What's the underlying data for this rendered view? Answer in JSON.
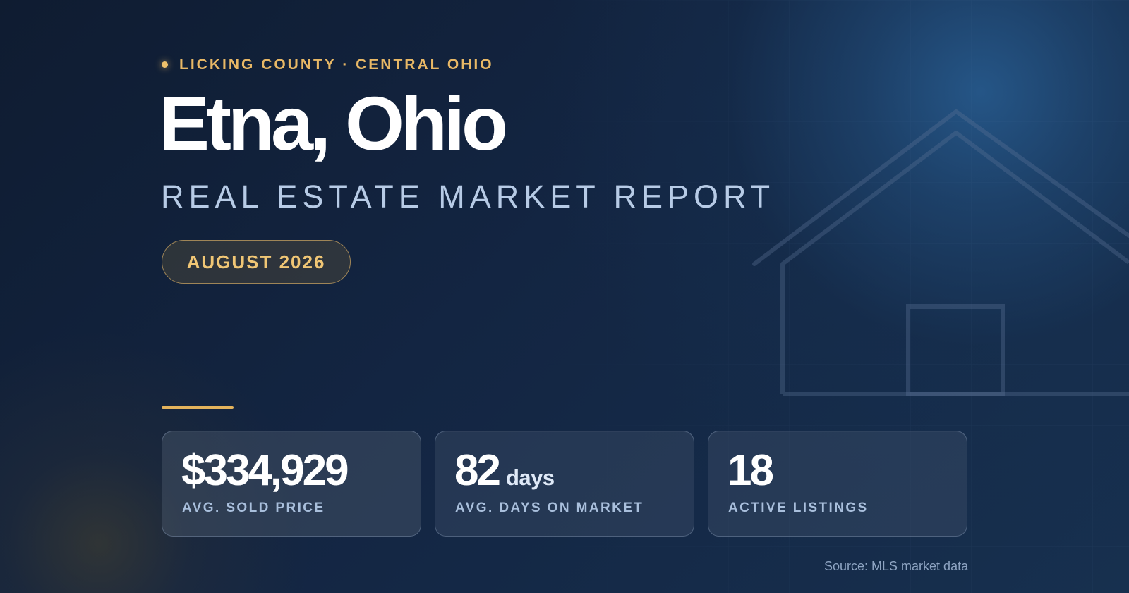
{
  "eyebrow": {
    "text": "LICKING COUNTY · CENTRAL OHIO"
  },
  "header": {
    "title": "Etna, Ohio",
    "subtitle": "REAL ESTATE MARKET REPORT",
    "date": "AUGUST 2026"
  },
  "stats": [
    {
      "value": "$334,929",
      "unit": "",
      "label": "AVG. SOLD PRICE"
    },
    {
      "value": "82",
      "unit": "days",
      "label": "AVG. DAYS ON MARKET"
    },
    {
      "value": "18",
      "unit": "",
      "label": "ACTIVE LISTINGS"
    }
  ],
  "footer": {
    "source": "Source: MLS market data"
  },
  "icons": {
    "status_dot": "dot-icon",
    "background_graphic": "house-outline-icon"
  },
  "colors": {
    "accent_gold": "#e8b866",
    "title_white": "#ffffff",
    "subtitle_blue": "#b7cbe6",
    "background_navy": "#12213a"
  }
}
